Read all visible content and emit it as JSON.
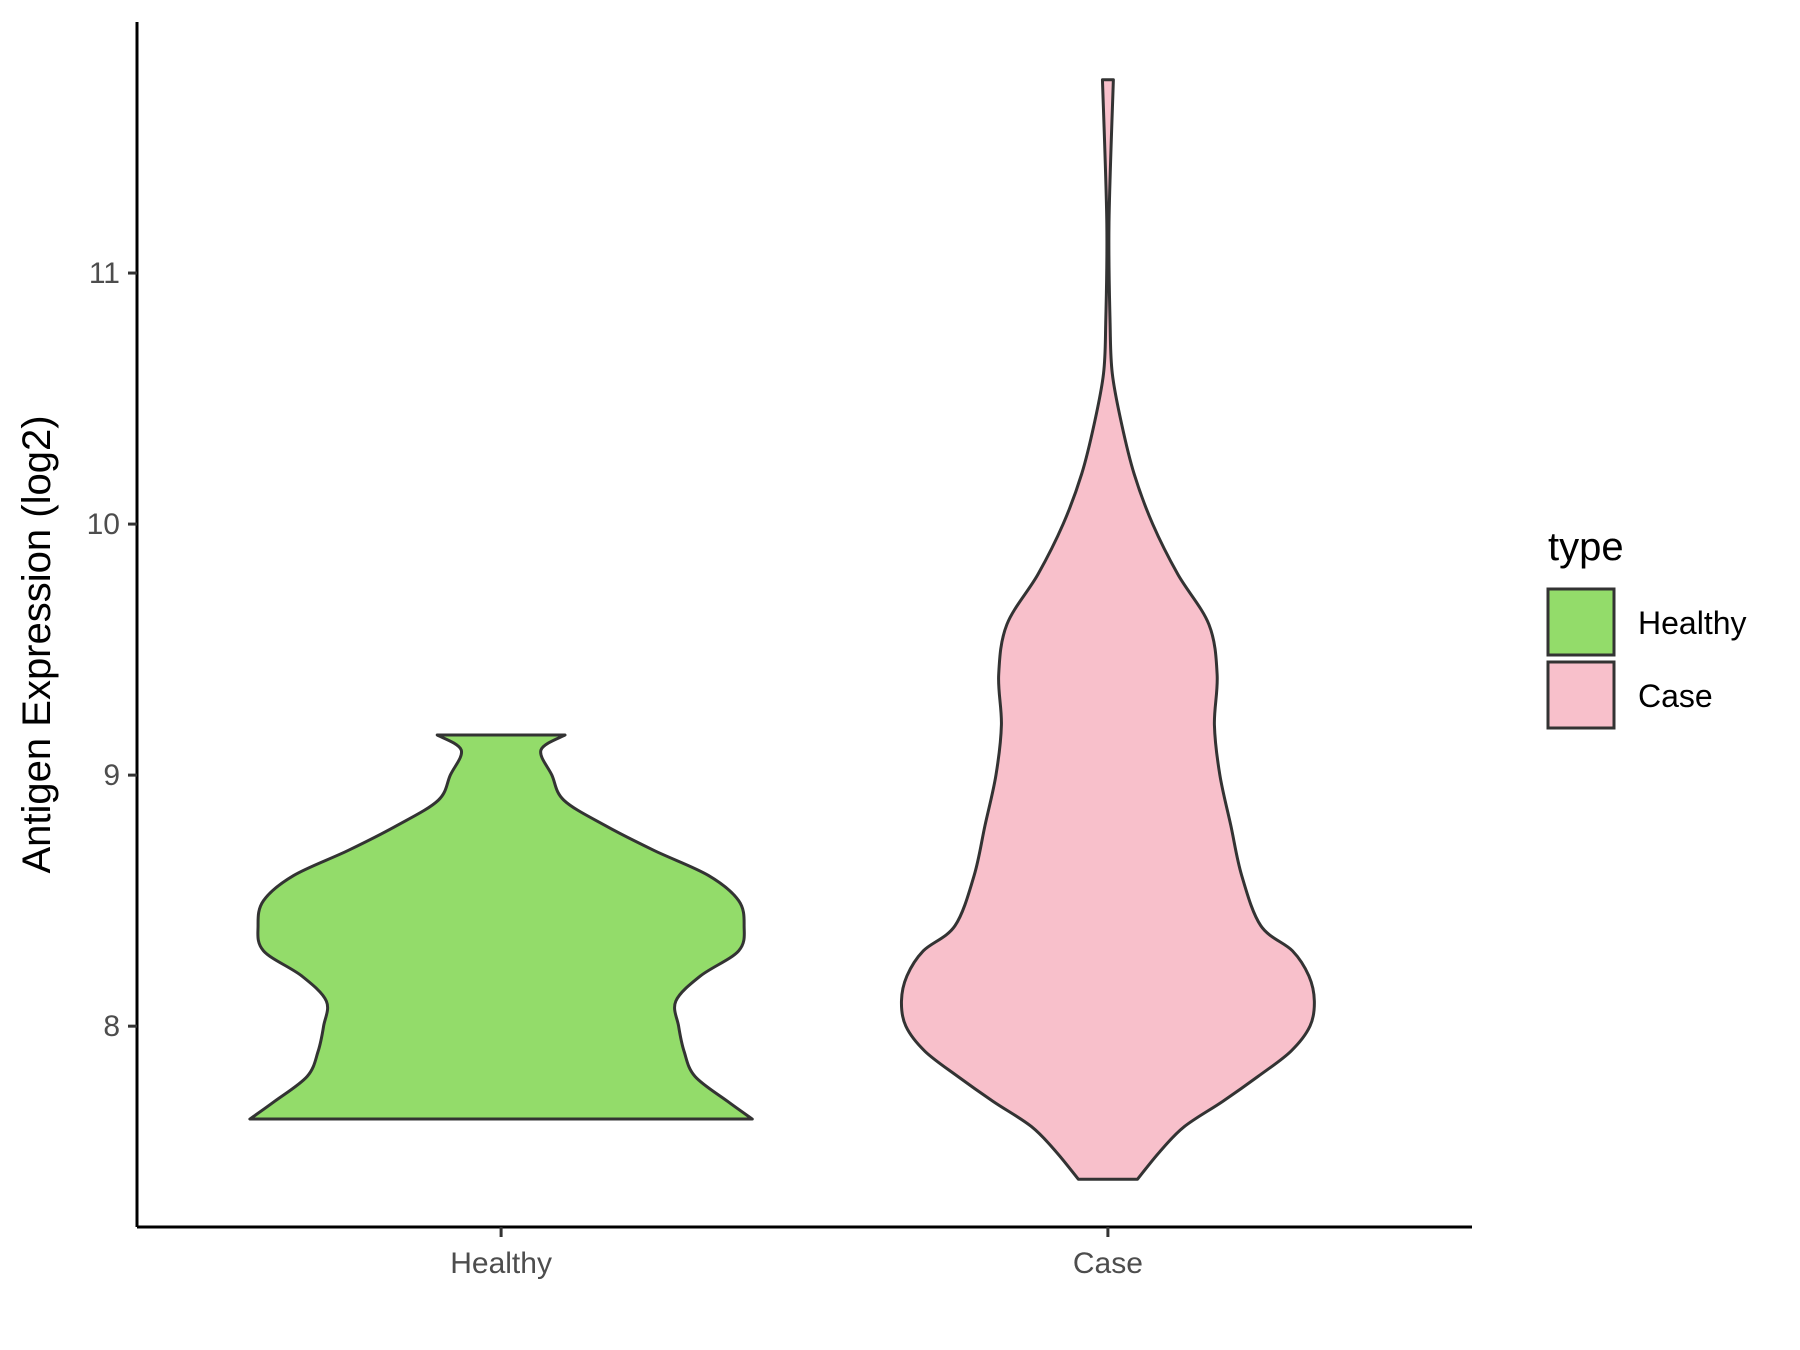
{
  "chart_data": {
    "type": "violin",
    "ylabel": "Antigen Expression (log2)",
    "xlabel": "",
    "ylim": [
      7.2,
      12.0
    ],
    "yticks": [
      8,
      9,
      10,
      11
    ],
    "grid": false,
    "legend": {
      "title": "type",
      "placement": "right",
      "entries": [
        {
          "name": "Healthy",
          "color": "#93DC6A"
        },
        {
          "name": "Case",
          "color": "#F8C0CB"
        }
      ]
    },
    "categories": [
      "Healthy",
      "Case"
    ],
    "series": [
      {
        "name": "Healthy",
        "color": "#93DC6A",
        "stroke": "#333333",
        "min": 7.63,
        "max": 9.16,
        "profile": [
          [
            7.63,
            0.46
          ],
          [
            7.7,
            0.415
          ],
          [
            7.8,
            0.355
          ],
          [
            7.9,
            0.335
          ],
          [
            8.0,
            0.325
          ],
          [
            8.1,
            0.32
          ],
          [
            8.2,
            0.365
          ],
          [
            8.3,
            0.435
          ],
          [
            8.4,
            0.445
          ],
          [
            8.5,
            0.435
          ],
          [
            8.6,
            0.38
          ],
          [
            8.7,
            0.28
          ],
          [
            8.8,
            0.19
          ],
          [
            8.9,
            0.115
          ],
          [
            9.0,
            0.093
          ],
          [
            9.1,
            0.073
          ],
          [
            9.16,
            0.117
          ]
        ]
      },
      {
        "name": "Case",
        "color": "#F8C0CB",
        "stroke": "#333333",
        "min": 7.39,
        "max": 11.77,
        "profile": [
          [
            7.39,
            0.054
          ],
          [
            7.5,
            0.095
          ],
          [
            7.6,
            0.14
          ],
          [
            7.7,
            0.21
          ],
          [
            7.8,
            0.275
          ],
          [
            7.9,
            0.335
          ],
          [
            8.0,
            0.37
          ],
          [
            8.1,
            0.378
          ],
          [
            8.2,
            0.368
          ],
          [
            8.3,
            0.338
          ],
          [
            8.4,
            0.28
          ],
          [
            8.6,
            0.245
          ],
          [
            8.8,
            0.225
          ],
          [
            9.0,
            0.205
          ],
          [
            9.2,
            0.195
          ],
          [
            9.4,
            0.2
          ],
          [
            9.6,
            0.185
          ],
          [
            9.8,
            0.128
          ],
          [
            10.0,
            0.082
          ],
          [
            10.2,
            0.048
          ],
          [
            10.4,
            0.025
          ],
          [
            10.6,
            0.008
          ],
          [
            10.8,
            0.004
          ],
          [
            11.2,
            0.002
          ],
          [
            11.77,
            0.01
          ]
        ]
      }
    ]
  }
}
